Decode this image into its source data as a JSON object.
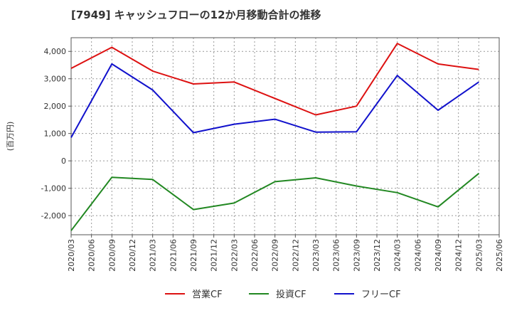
{
  "chart_data": {
    "type": "line",
    "title": "[7949]  キャッシュフローの12か月移動合計の推移",
    "xlabel": "",
    "ylabel": "(百万円)",
    "ylim": [
      -2700,
      4500
    ],
    "yticks": [
      -2000,
      -1000,
      0,
      1000,
      2000,
      3000,
      4000
    ],
    "ytick_labels": [
      "-2,000",
      "-1,000",
      "0",
      "1,000",
      "2,000",
      "3,000",
      "4,000"
    ],
    "xtick_labels": [
      "2020/03",
      "2020/06",
      "2020/09",
      "2020/12",
      "2021/03",
      "2021/06",
      "2021/09",
      "2021/12",
      "2022/03",
      "2022/06",
      "2022/09",
      "2022/12",
      "2023/03",
      "2023/06",
      "2023/09",
      "2023/12",
      "2024/03",
      "2024/06",
      "2024/09",
      "2024/12",
      "2025/03",
      "2025/06"
    ],
    "grid": true,
    "legend_position": "bottom-center",
    "series": [
      {
        "name": "営業CF",
        "color": "#dd1111",
        "points": [
          [
            0,
            3380
          ],
          [
            2,
            4150
          ],
          [
            4,
            3280
          ],
          [
            6,
            2810
          ],
          [
            8,
            2880
          ],
          [
            12,
            1680
          ],
          [
            14,
            2000
          ],
          [
            16,
            4290
          ],
          [
            18,
            3540
          ],
          [
            20,
            3340
          ]
        ]
      },
      {
        "name": "投資CF",
        "color": "#228822",
        "points": [
          [
            0,
            -2550
          ],
          [
            2,
            -600
          ],
          [
            4,
            -680
          ],
          [
            6,
            -1780
          ],
          [
            8,
            -1540
          ],
          [
            10,
            -760
          ],
          [
            12,
            -620
          ],
          [
            14,
            -920
          ],
          [
            16,
            -1160
          ],
          [
            18,
            -1680
          ],
          [
            20,
            -460
          ]
        ]
      },
      {
        "name": "フリーCF",
        "color": "#1111cc",
        "points": [
          [
            0,
            850
          ],
          [
            2,
            3540
          ],
          [
            4,
            2590
          ],
          [
            6,
            1030
          ],
          [
            8,
            1340
          ],
          [
            10,
            1520
          ],
          [
            12,
            1050
          ],
          [
            14,
            1060
          ],
          [
            16,
            3120
          ],
          [
            18,
            1850
          ],
          [
            20,
            2880
          ]
        ]
      }
    ]
  }
}
